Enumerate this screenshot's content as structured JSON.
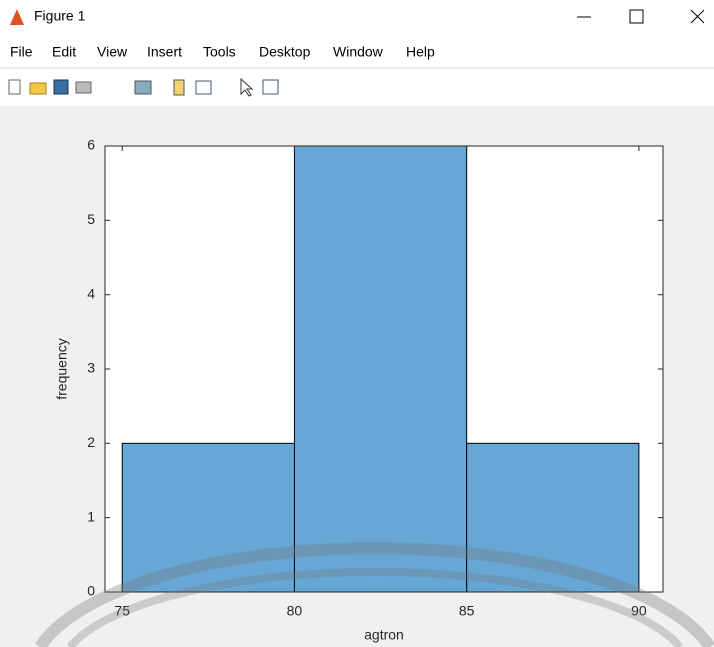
{
  "window": {
    "title": "Figure 1",
    "menu": [
      "File",
      "Edit",
      "View",
      "Insert",
      "Tools",
      "Desktop",
      "Window",
      "Help"
    ]
  },
  "chart_data": {
    "type": "histogram",
    "xlabel": "agtron",
    "ylabel": "frequency",
    "bins": [
      75,
      80,
      85,
      90
    ],
    "counts": [
      2,
      6,
      2
    ],
    "color": "#66a7d6",
    "xlim": [
      74.5,
      90.7
    ],
    "ylim": [
      0,
      6
    ],
    "xticks": [
      75,
      80,
      85,
      90
    ],
    "yticks": [
      0,
      1,
      2,
      3,
      4,
      5,
      6
    ]
  }
}
